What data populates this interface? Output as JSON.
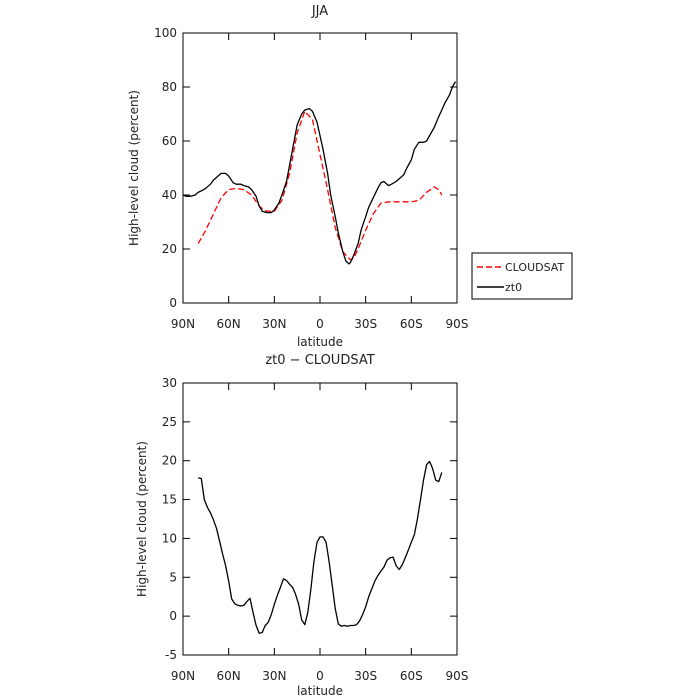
{
  "chart_data": [
    {
      "type": "line",
      "title": "JJA",
      "xlabel": "latitude",
      "ylabel": "High-level cloud (percent)",
      "xlim": [
        90,
        -90
      ],
      "ylim": [
        0,
        100
      ],
      "xticks": [
        90,
        60,
        30,
        0,
        -30,
        -60,
        -90
      ],
      "xtick_labels": [
        "90N",
        "60N",
        "30N",
        "0",
        "30S",
        "60S",
        "90S"
      ],
      "yticks": [
        0,
        20,
        40,
        60,
        80,
        100
      ],
      "ytick_labels": [
        "0",
        "20",
        "40",
        "60",
        "80",
        "100"
      ],
      "legend": {
        "placement": "right-outside"
      },
      "series": [
        {
          "name": "CLOUDSAT",
          "color": "#ff0000",
          "style": "dashed",
          "x": [
            80,
            75,
            70,
            65,
            60,
            55,
            50,
            45,
            40,
            37,
            35,
            30,
            25,
            20,
            15,
            10,
            5,
            0,
            -5,
            -10,
            -15,
            -20,
            -22,
            -25,
            -30,
            -35,
            -40,
            -45,
            -50,
            -55,
            -60,
            -65,
            -70,
            -75,
            -78,
            -80
          ],
          "y": [
            22,
            27,
            33,
            39,
            42,
            42.5,
            42,
            40,
            36,
            34.5,
            34,
            34,
            38,
            48,
            63,
            71,
            68,
            55,
            42,
            28,
            19,
            16,
            16.5,
            20,
            27,
            33,
            37,
            37.5,
            37.5,
            37.5,
            37.5,
            38,
            41,
            43,
            42,
            40
          ]
        },
        {
          "name": "zt0",
          "color": "#000000",
          "style": "solid",
          "x": [
            90,
            88,
            85,
            82,
            80,
            78,
            75,
            72,
            70,
            67,
            65,
            62,
            60,
            57,
            55,
            52,
            50,
            47,
            45,
            42,
            40,
            38,
            35,
            32,
            30,
            27,
            25,
            22,
            20,
            17,
            15,
            12,
            10,
            7,
            5,
            2,
            0,
            -2,
            -5,
            -7,
            -10,
            -12,
            -15,
            -17,
            -19,
            -20,
            -22,
            -25,
            -27,
            -30,
            -32,
            -35,
            -38,
            -40,
            -42,
            -45,
            -47,
            -50,
            -52,
            -55,
            -57,
            -60,
            -62,
            -65,
            -68,
            -70,
            -72,
            -75,
            -78,
            -80,
            -82,
            -85,
            -87,
            -89
          ],
          "y": [
            40,
            39.5,
            39.5,
            40,
            41,
            41.5,
            42.5,
            44,
            45.5,
            47,
            48,
            48,
            47,
            44.5,
            44,
            44,
            43.5,
            43,
            42,
            39.5,
            36,
            34,
            33.5,
            33.5,
            34.5,
            37,
            40,
            45,
            51,
            60,
            66,
            70,
            71.5,
            72,
            71,
            67,
            62,
            57,
            48,
            40,
            32,
            26,
            19,
            15.5,
            14.5,
            15,
            17.5,
            22,
            27,
            32,
            35.5,
            39,
            42.5,
            44.5,
            45,
            43.5,
            44,
            45,
            46,
            47.5,
            50,
            53,
            57,
            59.5,
            59.5,
            60,
            62,
            65,
            69,
            71.5,
            74,
            77,
            80,
            82
          ]
        }
      ]
    },
    {
      "type": "line",
      "title": "zt0 − CLOUDSAT",
      "xlabel": "latitude",
      "ylabel": "High-level cloud (percent)",
      "xlim": [
        90,
        -90
      ],
      "ylim": [
        -5,
        30
      ],
      "xticks": [
        90,
        60,
        30,
        0,
        -30,
        -60,
        -90
      ],
      "xtick_labels": [
        "90N",
        "60N",
        "30N",
        "0",
        "30S",
        "60S",
        "90S"
      ],
      "yticks": [
        -5,
        0,
        5,
        10,
        15,
        20,
        25,
        30
      ],
      "ytick_labels": [
        "-5",
        "0",
        "5",
        "10",
        "15",
        "20",
        "25",
        "30"
      ],
      "series": [
        {
          "color": "#000000",
          "style": "solid",
          "x": [
            80,
            78,
            76,
            74,
            72,
            70,
            68,
            66,
            64,
            62,
            60,
            58,
            56,
            54,
            52,
            50,
            48,
            46,
            44,
            42,
            40,
            38,
            36,
            34,
            32,
            30,
            28,
            26,
            24,
            22,
            20,
            18,
            16,
            14,
            12,
            10,
            8,
            6,
            4,
            2,
            0,
            -2,
            -4,
            -6,
            -8,
            -10,
            -12,
            -14,
            -16,
            -18,
            -20,
            -22,
            -24,
            -26,
            -28,
            -30,
            -32,
            -34,
            -36,
            -38,
            -40,
            -42,
            -44,
            -46,
            -48,
            -50,
            -52,
            -54,
            -56,
            -58,
            -60,
            -62,
            -64,
            -66,
            -68,
            -70,
            -72,
            -74,
            -76,
            -78,
            -80
          ],
          "y": [
            17.8,
            17.7,
            15,
            14,
            13.3,
            12.4,
            11.3,
            9.7,
            8,
            6.5,
            4.5,
            2.2,
            1.6,
            1.4,
            1.3,
            1.4,
            1.9,
            2.3,
            0.5,
            -1.2,
            -2.2,
            -2.1,
            -1.2,
            -0.8,
            0.2,
            1.5,
            2.7,
            3.7,
            4.8,
            4.6,
            4.1,
            3.7,
            2.8,
            1.5,
            -0.5,
            -1.1,
            0.5,
            3.5,
            7,
            9.5,
            10.2,
            10.2,
            9.5,
            7,
            4,
            1,
            -1,
            -1.3,
            -1.2,
            -1.3,
            -1.2,
            -1.2,
            -1.1,
            -0.6,
            0.2,
            1.2,
            2.5,
            3.5,
            4.5,
            5.2,
            5.8,
            6.3,
            7.2,
            7.5,
            7.6,
            6.5,
            6,
            6.6,
            7.5,
            8.5,
            9.5,
            10.5,
            12.5,
            15,
            17.5,
            19.5,
            19.9,
            19,
            17.5,
            17.3,
            18.5
          ]
        }
      ]
    }
  ]
}
